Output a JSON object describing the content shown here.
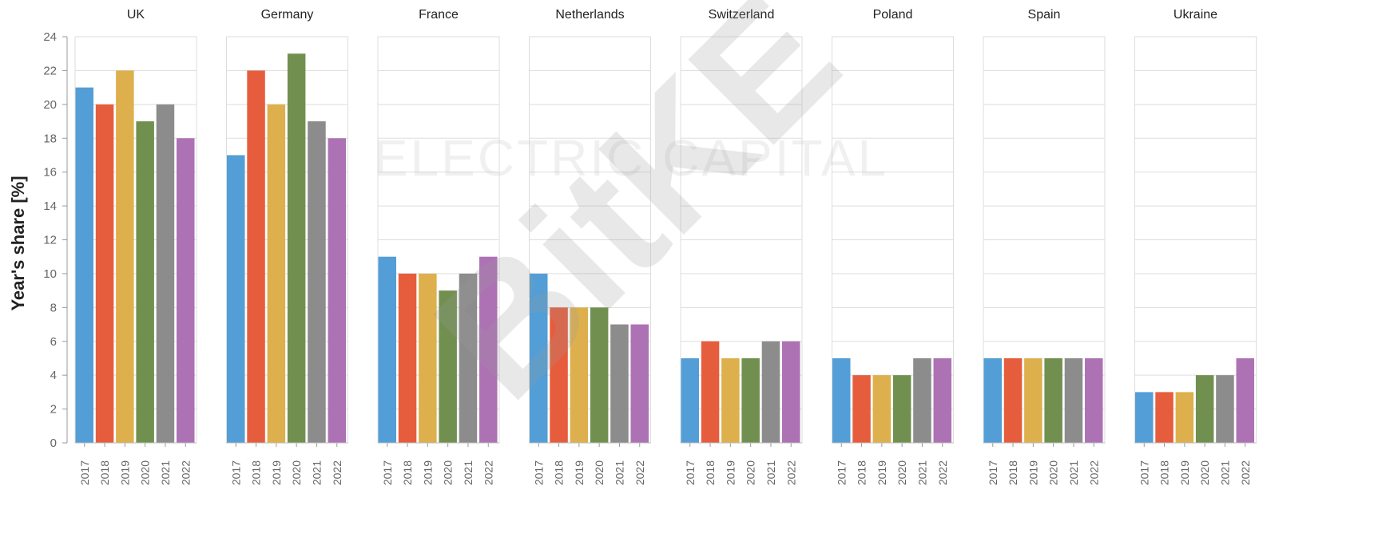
{
  "chart_data": {
    "type": "bar",
    "ylabel": "Year's share [%]",
    "ylim": [
      0,
      24
    ],
    "yticks": [
      0,
      2,
      4,
      6,
      8,
      10,
      12,
      14,
      16,
      18,
      20,
      22,
      24
    ],
    "grid": true,
    "categories": [
      "2017",
      "2018",
      "2019",
      "2020",
      "2021",
      "2022"
    ],
    "colors": [
      "#539ed6",
      "#e65d3d",
      "#ddb04d",
      "#71904f",
      "#8c8c8c",
      "#ad72b4"
    ],
    "panels": [
      {
        "title": "UK",
        "values": [
          21,
          20,
          22,
          19,
          20,
          18
        ]
      },
      {
        "title": "Germany",
        "values": [
          17,
          22,
          20,
          23,
          19,
          18
        ]
      },
      {
        "title": "France",
        "values": [
          11,
          10,
          10,
          9,
          10,
          11
        ]
      },
      {
        "title": "Netherlands",
        "values": [
          10,
          8,
          8,
          8,
          7,
          7
        ]
      },
      {
        "title": "Switzerland",
        "values": [
          5,
          6,
          5,
          5,
          6,
          6
        ]
      },
      {
        "title": "Poland",
        "values": [
          5,
          4,
          4,
          4,
          5,
          5
        ]
      },
      {
        "title": "Spain",
        "values": [
          5,
          5,
          5,
          5,
          5,
          5
        ]
      },
      {
        "title": "Ukraine",
        "values": [
          3,
          3,
          3,
          4,
          4,
          5
        ]
      }
    ]
  },
  "watermarks": {
    "large": "BitKE",
    "small": "ELECTRIC CAPITAL"
  }
}
